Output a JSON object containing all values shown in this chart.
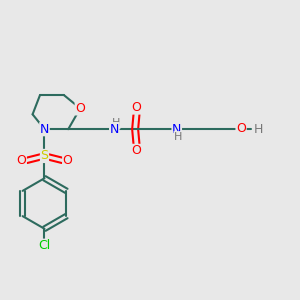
{
  "bg_color": "#e8e8e8",
  "bond_color": "#2d6b5e",
  "atom_colors": {
    "O": "#ff0000",
    "N": "#0000ff",
    "S": "#cccc00",
    "Cl": "#00cc00",
    "H": "#777777",
    "C": "#2d6b5e"
  },
  "figsize": [
    3.0,
    3.0
  ],
  "dpi": 100
}
